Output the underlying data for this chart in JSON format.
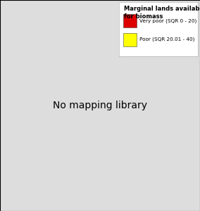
{
  "title": "Marginal lands available\nfor biomass",
  "legend_entries": [
    {
      "label": "Very poor (SQR 0 - 20)",
      "color": "#dd0000"
    },
    {
      "label": "Poor (SQR 20.01 - 40)",
      "color": "#ffff00"
    }
  ],
  "background_color": "#ffffff",
  "land_color": "#c8c8c8",
  "border_color": "#999999",
  "ocean_color": "#ffffff",
  "legend_title_fontsize": 6.0,
  "legend_label_fontsize": 5.2,
  "fig_width": 2.84,
  "fig_height": 3.0,
  "dpi": 100,
  "map_extent": [
    -25,
    45,
    33,
    72
  ]
}
